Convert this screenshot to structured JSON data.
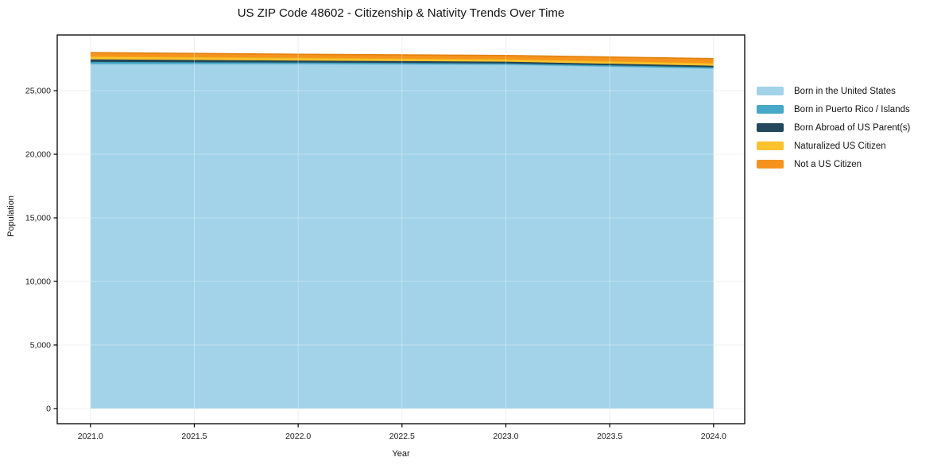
{
  "chart_data": {
    "type": "area",
    "stacking": "stacked",
    "title": "US ZIP Code 48602 - Citizenship & Nativity Trends Over Time",
    "xlabel": "Year",
    "ylabel": "Population",
    "x": [
      2021,
      2022,
      2023,
      2024
    ],
    "x_ticks": [
      "2021.0",
      "2021.5",
      "2022.0",
      "2022.5",
      "2023.0",
      "2023.5",
      "2024.0"
    ],
    "x_tick_values": [
      2021,
      2021.5,
      2022,
      2022.5,
      2023,
      2023.5,
      2024
    ],
    "y_ticks": [
      "0",
      "5,000",
      "10,000",
      "15,000",
      "20,000",
      "25,000"
    ],
    "y_tick_values": [
      0,
      5000,
      10000,
      15000,
      20000,
      25000
    ],
    "xlim": [
      2020.84,
      2024.15
    ],
    "ylim": [
      -1190,
      29380
    ],
    "grid": true,
    "legend_position": "right-outside",
    "series": [
      {
        "name": "Born in the United States",
        "color": "#a2d3e9",
        "edge": "#8ec4de",
        "values": [
          27100,
          27100,
          27050,
          26750
        ]
      },
      {
        "name": "Born in Puerto Rico / Islands",
        "color": "#45a9c7",
        "edge": "#3b97b3",
        "values": [
          170,
          120,
          100,
          100
        ]
      },
      {
        "name": "Born Abroad of US Parent(s)",
        "color": "#23485c",
        "edge": "#1d3e50",
        "values": [
          190,
          150,
          130,
          110
        ]
      },
      {
        "name": "Naturalized US Citizen",
        "color": "#fcc22d",
        "edge": "#efaf14",
        "values": [
          240,
          220,
          200,
          210
        ]
      },
      {
        "name": "Not a US Citizen",
        "color": "#f6931e",
        "edge": "#e2820e",
        "values": [
          290,
          270,
          290,
          350
        ]
      }
    ],
    "frame_color": "#000000",
    "grid_color": "#e9e9e9",
    "tick_label_color": "#1a1a1a"
  }
}
